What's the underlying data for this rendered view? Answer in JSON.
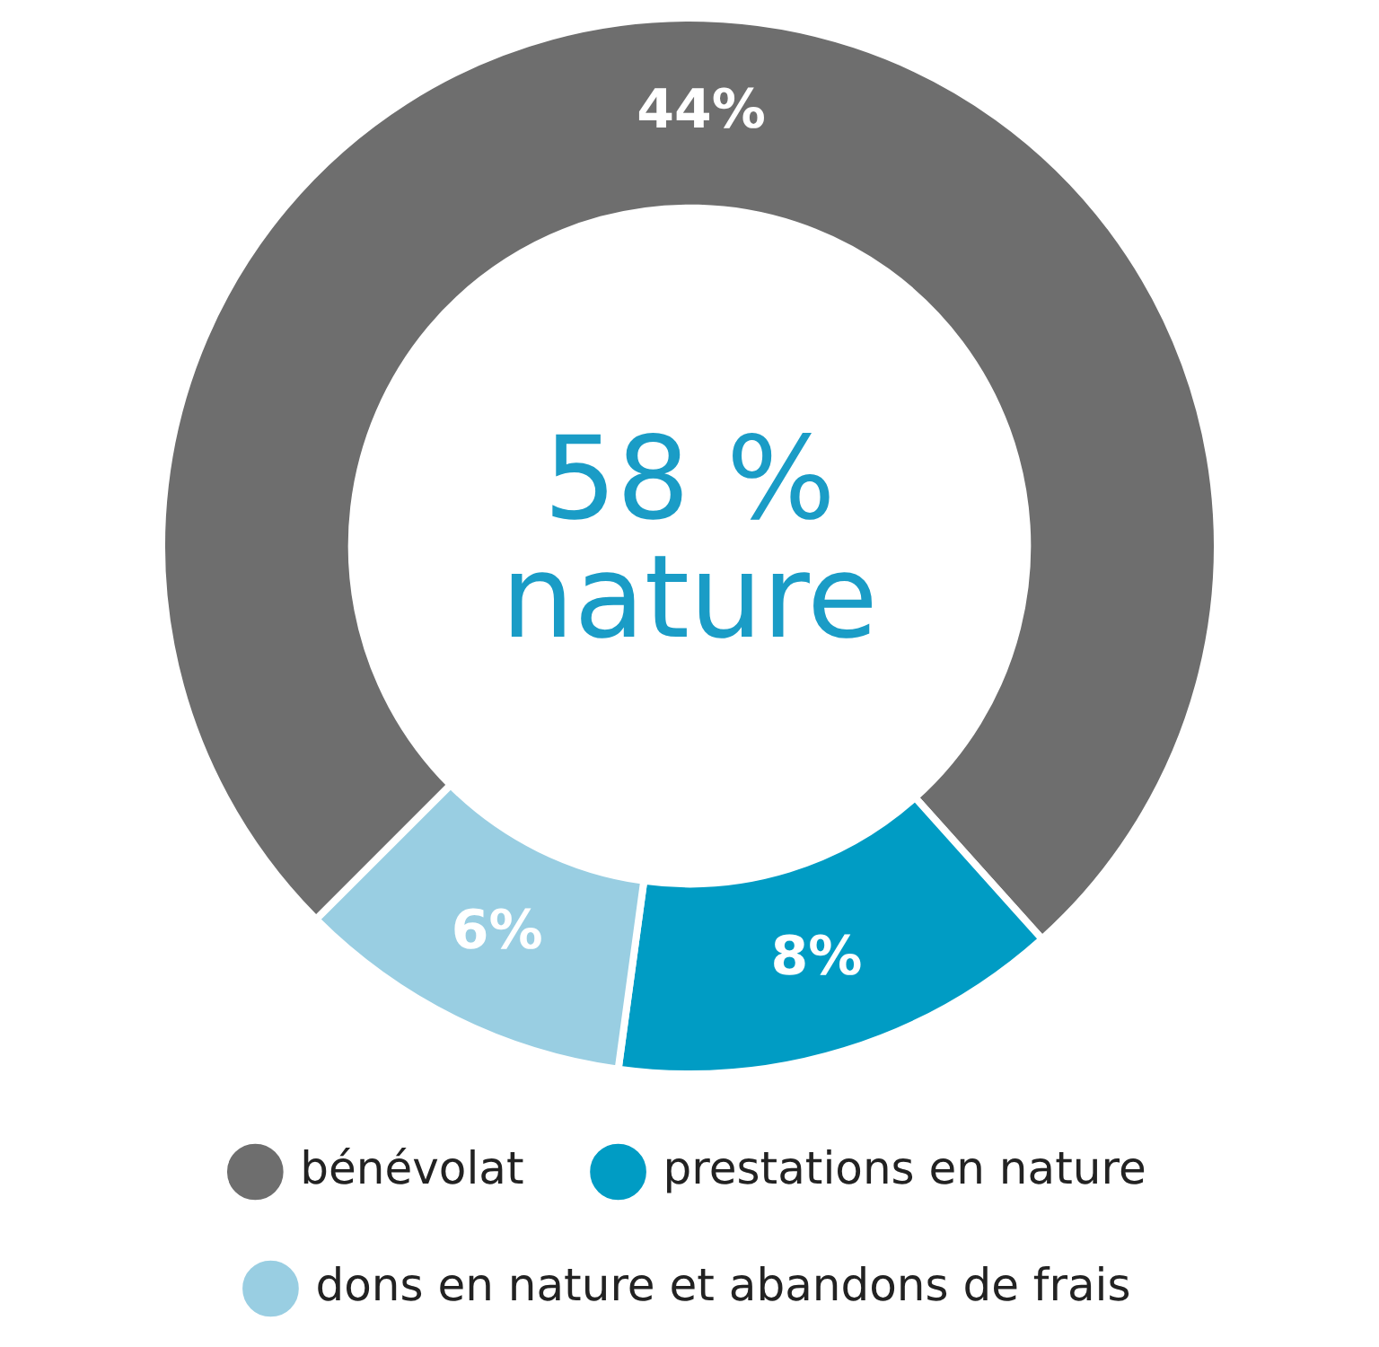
{
  "chart_data": {
    "type": "donut",
    "categories": [
      "bénévolat",
      "prestations en nature",
      "dons en nature et abandons de frais"
    ],
    "values": [
      44,
      8,
      6
    ],
    "colors": [
      "#6e6e6e",
      "#009cc4",
      "#99cee2"
    ],
    "value_labels": [
      "44%",
      "8%",
      "6%"
    ],
    "annotations": [
      "58 % nature"
    ],
    "legend": "bottom"
  }
}
